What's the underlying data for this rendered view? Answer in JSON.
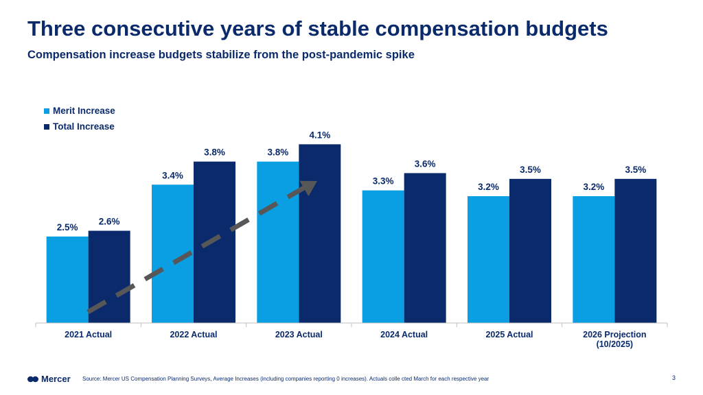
{
  "header": {
    "title": "Three consecutive years of stable compensation budgets",
    "subtitle": "Compensation increase budgets stabilize from the post-pandemic spike"
  },
  "colors": {
    "merit": "#0a9ee2",
    "total": "#0a2a6b",
    "arrow": "#575757",
    "text": "#0a2a6b"
  },
  "chart_data": {
    "type": "bar",
    "categories": [
      "2021 Actual",
      "2022 Actual",
      "2023 Actual",
      "2024 Actual",
      "2025 Actual",
      "2026 Projection\n(10/2025)"
    ],
    "series": [
      {
        "name": "Merit Increase",
        "values": [
          2.5,
          3.4,
          3.8,
          3.3,
          3.2,
          3.2
        ],
        "labels": [
          "2.5%",
          "3.4%",
          "3.8%",
          "3.3%",
          "3.2%",
          "3.2%"
        ]
      },
      {
        "name": "Total Increase",
        "values": [
          2.6,
          3.8,
          4.1,
          3.6,
          3.5,
          3.5
        ],
        "labels": [
          "2.6%",
          "3.8%",
          "4.1%",
          "3.6%",
          "3.5%",
          "3.5%"
        ]
      }
    ],
    "ylim": [
      1.0,
      4.2
    ],
    "annotation": "dashed upward trend arrow from 2021 to 2023",
    "legend_position": "top-left"
  },
  "footer": {
    "brand": "Mercer",
    "source": "Source: Mercer US Compensation Planning Surveys, Average Increases (including companies reporting 0 increases). Actuals colle cted March for each respective year",
    "page_number": "3"
  }
}
